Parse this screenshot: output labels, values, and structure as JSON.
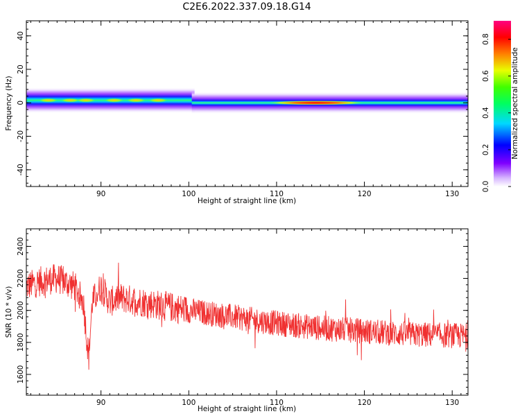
{
  "title": "C2E6.2022.337.09.18.G14",
  "chart_data": [
    {
      "type": "heatmap",
      "xlabel": "Height of straight line (km)",
      "ylabel": "Frequency (Hz)",
      "xlim": [
        81.5,
        131.8
      ],
      "ylim": [
        -50,
        49
      ],
      "xticks": [
        "90",
        "100",
        "110",
        "120",
        "130"
      ],
      "yticks": [
        "-40",
        "-20",
        "0",
        "20",
        "40"
      ],
      "grid": false,
      "description_series": [
        {
          "x_range": [
            81.5,
            100.5
          ],
          "center_freq": 1.5,
          "half_width": 3.5,
          "peak_amplitude": 0.55
        },
        {
          "x_range": [
            100.5,
            131.8
          ],
          "center_freq": 0,
          "half_width": 3.0,
          "peak_amplitude": 0.9,
          "peak_x": 114.5
        }
      ],
      "colorbar": {
        "label": "Normalized spectral amplitude",
        "range": [
          0.0,
          0.9
        ],
        "ticks": [
          "0.0",
          "0.2",
          "0.4",
          "0.6",
          "0.8"
        ]
      }
    },
    {
      "type": "line",
      "xlabel": "Height of straight line (km)",
      "ylabel": "SNR (10 * v/v)",
      "xlim": [
        81.5,
        131.8
      ],
      "ylim": [
        1470,
        2510
      ],
      "xticks": [
        "90",
        "100",
        "110",
        "120",
        "130"
      ],
      "yticks": [
        "1600",
        "1800",
        "2000",
        "2200",
        "2400"
      ],
      "grid": false,
      "color": "#f03030",
      "trend": [
        {
          "x": 81.5,
          "y": 2150
        },
        {
          "x": 83,
          "y": 2180
        },
        {
          "x": 85,
          "y": 2200
        },
        {
          "x": 87,
          "y": 2150
        },
        {
          "x": 88,
          "y": 2050
        },
        {
          "x": 88.6,
          "y": 1700
        },
        {
          "x": 89,
          "y": 2050
        },
        {
          "x": 90,
          "y": 2150
        },
        {
          "x": 91,
          "y": 2050
        },
        {
          "x": 92,
          "y": 2080
        },
        {
          "x": 95,
          "y": 2050
        },
        {
          "x": 100,
          "y": 2000
        },
        {
          "x": 105,
          "y": 1960
        },
        {
          "x": 110,
          "y": 1920
        },
        {
          "x": 115,
          "y": 1890
        },
        {
          "x": 120,
          "y": 1870
        },
        {
          "x": 125,
          "y": 1850
        },
        {
          "x": 131.8,
          "y": 1840
        }
      ]
    }
  ]
}
